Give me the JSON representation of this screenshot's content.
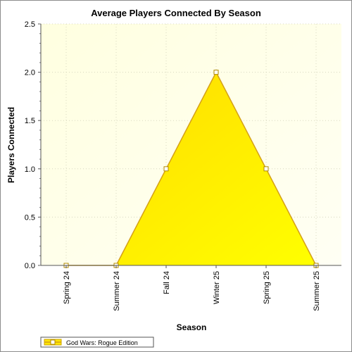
{
  "chart_data": {
    "type": "area",
    "title": "Average Players Connected By Season",
    "xlabel": "Season",
    "ylabel": "Players Connected",
    "categories": [
      "Spring 24",
      "Summer 24",
      "Fall 24",
      "Winter 25",
      "Spring 25",
      "Summer 25"
    ],
    "ylim": [
      0,
      2.5
    ],
    "yticks": [
      "0.0",
      "0.5",
      "1.0",
      "1.5",
      "2.0",
      "2.5"
    ],
    "grid": true,
    "legend_position": "bottom-left",
    "series": [
      {
        "name": "God Wars: Rogue Edition",
        "values": [
          0,
          0,
          1,
          2,
          1,
          0
        ],
        "color": "#ffe600",
        "line_color": "#d4a017"
      }
    ]
  }
}
